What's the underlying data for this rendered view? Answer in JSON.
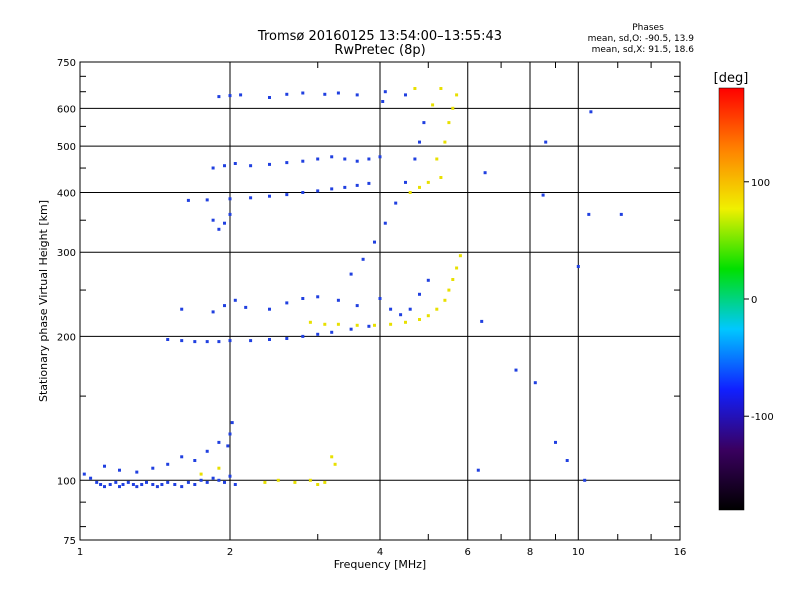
{
  "chart_data": {
    "type": "scatter",
    "title": "Tromsø 20160125 13:54:00–13:55:43",
    "subtitle": "RwPretec (8p)",
    "stats": {
      "heading": "Phases",
      "line_o": "mean, sd,O: -90.5, 13.9",
      "line_x": "mean, sd,X:  91.5, 18.6"
    },
    "xlabel": "Frequency [MHz]",
    "ylabel": "Stationary phase Virtual Height [km]",
    "xscale": "log",
    "yscale": "log",
    "xlim": [
      1,
      16
    ],
    "ylim": [
      75,
      750
    ],
    "x_ticks": [
      "1",
      "2",
      "4",
      "6",
      "8",
      "10",
      "16"
    ],
    "x_tick_values": [
      1,
      2,
      4,
      6,
      8,
      10,
      16
    ],
    "y_ticks": [
      "75",
      "100",
      "200",
      "300",
      "400",
      "500",
      "600",
      "750"
    ],
    "y_tick_values": [
      75,
      100,
      200,
      300,
      400,
      500,
      600,
      750
    ],
    "grid": true,
    "colorbar": {
      "label": "[deg]",
      "range": [
        -180,
        180
      ],
      "ticks": [
        "100",
        "0",
        "-100"
      ],
      "tick_values": [
        100,
        0,
        -100
      ],
      "colors": [
        "#000000",
        "#3a0060",
        "#1020ff",
        "#00c8ff",
        "#00e000",
        "#f0f000",
        "#ff8000",
        "#ff0000"
      ]
    },
    "series": [
      {
        "trace": "lower trace ~95-110 km",
        "color": "#2040e0",
        "points": [
          [
            1.02,
            103
          ],
          [
            1.05,
            101
          ],
          [
            1.08,
            99
          ],
          [
            1.1,
            98
          ],
          [
            1.12,
            97
          ],
          [
            1.15,
            98
          ],
          [
            1.18,
            99
          ],
          [
            1.2,
            97
          ],
          [
            1.22,
            98
          ],
          [
            1.25,
            99
          ],
          [
            1.28,
            98
          ],
          [
            1.3,
            97
          ],
          [
            1.33,
            98
          ],
          [
            1.36,
            99
          ],
          [
            1.4,
            98
          ],
          [
            1.43,
            97
          ],
          [
            1.46,
            98
          ],
          [
            1.5,
            99
          ],
          [
            1.55,
            98
          ],
          [
            1.6,
            97
          ],
          [
            1.65,
            99
          ],
          [
            1.7,
            98
          ],
          [
            1.75,
            100
          ],
          [
            1.8,
            99
          ],
          [
            1.85,
            101
          ],
          [
            1.9,
            100
          ],
          [
            1.95,
            99
          ],
          [
            2.0,
            102
          ],
          [
            2.05,
            98
          ],
          [
            1.12,
            107
          ],
          [
            1.2,
            105
          ],
          [
            1.3,
            104
          ],
          [
            1.4,
            106
          ],
          [
            1.5,
            108
          ],
          [
            1.6,
            112
          ],
          [
            1.7,
            110
          ],
          [
            1.8,
            115
          ],
          [
            1.9,
            120
          ],
          [
            2.0,
            125
          ],
          [
            2.02,
            132
          ],
          [
            1.98,
            118
          ]
        ]
      },
      {
        "trace": "lower trace yellow",
        "color": "#e8e000",
        "points": [
          [
            2.35,
            99
          ],
          [
            2.5,
            100
          ],
          [
            2.7,
            99
          ],
          [
            2.9,
            100
          ],
          [
            3.0,
            98
          ],
          [
            3.1,
            99
          ],
          [
            3.2,
            112
          ],
          [
            3.25,
            108
          ],
          [
            1.75,
            103
          ],
          [
            1.9,
            106
          ]
        ]
      },
      {
        "trace": "F1 trace ~195-215 km",
        "color": "#2040e0",
        "points": [
          [
            1.5,
            197
          ],
          [
            1.6,
            196
          ],
          [
            1.7,
            195
          ],
          [
            1.8,
            195
          ],
          [
            1.9,
            195
          ],
          [
            2.0,
            196
          ],
          [
            2.2,
            196
          ],
          [
            2.4,
            197
          ],
          [
            2.6,
            198
          ],
          [
            2.8,
            200
          ],
          [
            3.0,
            202
          ],
          [
            3.2,
            204
          ],
          [
            3.5,
            207
          ],
          [
            3.8,
            210
          ]
        ]
      },
      {
        "trace": "F1 extension yellow",
        "color": "#e8e000",
        "points": [
          [
            2.9,
            214
          ],
          [
            3.1,
            212
          ],
          [
            3.3,
            212
          ],
          [
            3.6,
            211
          ],
          [
            3.9,
            211
          ],
          [
            4.2,
            212
          ],
          [
            4.5,
            214
          ],
          [
            4.8,
            217
          ],
          [
            5.0,
            221
          ],
          [
            5.2,
            228
          ],
          [
            5.4,
            238
          ],
          [
            5.5,
            250
          ],
          [
            5.6,
            263
          ],
          [
            5.7,
            278
          ],
          [
            5.8,
            295
          ]
        ]
      },
      {
        "trace": "F2 trace ~380-460 km",
        "color": "#2040e0",
        "points": [
          [
            1.65,
            385
          ],
          [
            1.8,
            386
          ],
          [
            2.0,
            388
          ],
          [
            2.2,
            390
          ],
          [
            2.4,
            393
          ],
          [
            2.6,
            396
          ],
          [
            2.8,
            400
          ],
          [
            3.0,
            403
          ],
          [
            3.2,
            407
          ],
          [
            3.4,
            410
          ],
          [
            3.6,
            414
          ],
          [
            3.8,
            418
          ],
          [
            1.85,
            450
          ],
          [
            1.95,
            455
          ],
          [
            2.05,
            460
          ],
          [
            2.2,
            455
          ],
          [
            2.4,
            458
          ],
          [
            2.6,
            462
          ],
          [
            2.8,
            465
          ],
          [
            3.0,
            470
          ],
          [
            3.2,
            475
          ],
          [
            3.4,
            470
          ],
          [
            3.6,
            465
          ],
          [
            3.8,
            470
          ],
          [
            4.0,
            475
          ]
        ]
      },
      {
        "trace": "F2 cusp blue",
        "color": "#2040e0",
        "points": [
          [
            3.5,
            270
          ],
          [
            3.7,
            290
          ],
          [
            3.9,
            315
          ],
          [
            4.1,
            345
          ],
          [
            4.3,
            380
          ],
          [
            4.5,
            420
          ],
          [
            4.7,
            470
          ],
          [
            4.8,
            510
          ],
          [
            4.9,
            560
          ],
          [
            4.0,
            240
          ],
          [
            4.2,
            228
          ],
          [
            4.4,
            222
          ],
          [
            4.6,
            228
          ],
          [
            4.8,
            245
          ],
          [
            5.0,
            262
          ],
          [
            4.05,
            620
          ],
          [
            4.1,
            650
          ],
          [
            4.5,
            640
          ]
        ]
      },
      {
        "trace": "F2 upper yellow",
        "color": "#e8e000",
        "points": [
          [
            5.2,
            470
          ],
          [
            5.4,
            510
          ],
          [
            5.5,
            560
          ],
          [
            5.6,
            600
          ],
          [
            5.7,
            640
          ],
          [
            5.3,
            430
          ],
          [
            5.0,
            420
          ],
          [
            4.8,
            410
          ],
          [
            4.6,
            400
          ],
          [
            5.1,
            610
          ],
          [
            5.3,
            660
          ],
          [
            4.7,
            660
          ]
        ]
      },
      {
        "trace": "F1 scattered blue",
        "color": "#2040e0",
        "points": [
          [
            1.85,
            225
          ],
          [
            1.95,
            232
          ],
          [
            2.05,
            238
          ],
          [
            2.15,
            230
          ],
          [
            2.4,
            228
          ],
          [
            2.6,
            235
          ],
          [
            2.8,
            240
          ],
          [
            3.0,
            242
          ],
          [
            3.3,
            238
          ],
          [
            3.6,
            232
          ],
          [
            1.6,
            228
          ],
          [
            1.9,
            335
          ],
          [
            1.95,
            345
          ],
          [
            1.85,
            350
          ],
          [
            2.0,
            360
          ]
        ]
      },
      {
        "trace": "top trace ~630 km",
        "color": "#2040e0",
        "points": [
          [
            1.9,
            635
          ],
          [
            2.0,
            638
          ],
          [
            2.1,
            640
          ],
          [
            2.4,
            632
          ],
          [
            2.6,
            642
          ],
          [
            2.8,
            646
          ],
          [
            3.1,
            642
          ],
          [
            3.3,
            646
          ],
          [
            3.6,
            640
          ]
        ]
      },
      {
        "trace": "isolated points",
        "color": "#2040e0",
        "points": [
          [
            6.3,
            105
          ],
          [
            6.5,
            440
          ],
          [
            6.4,
            215
          ],
          [
            7.5,
            170
          ],
          [
            8.2,
            160
          ],
          [
            8.5,
            395
          ],
          [
            8.6,
            510
          ],
          [
            9.0,
            120
          ],
          [
            10.3,
            100
          ],
          [
            10.5,
            360
          ],
          [
            10.6,
            590
          ],
          [
            12.2,
            360
          ],
          [
            10.0,
            280
          ],
          [
            9.5,
            110
          ]
        ]
      }
    ]
  }
}
